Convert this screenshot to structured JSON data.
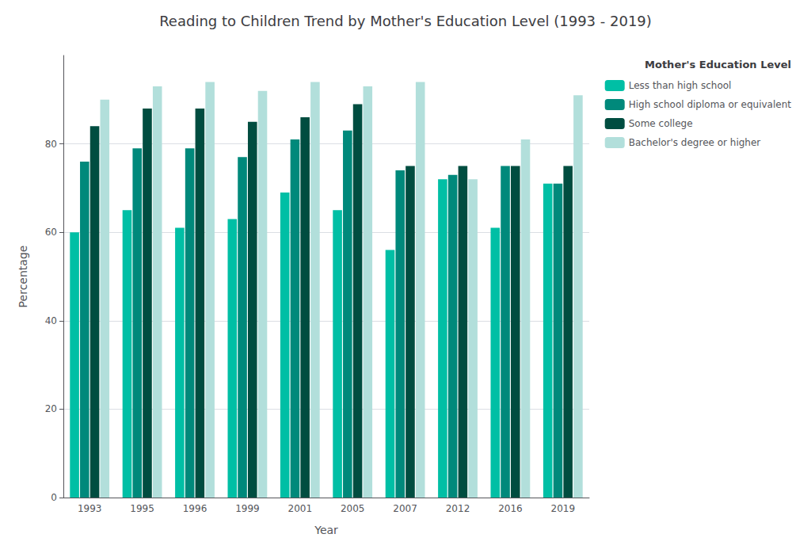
{
  "chart_data": {
    "type": "bar",
    "title": "Reading to Children Trend by Mother's Education Level (1993 - 2019)",
    "xlabel": "Year",
    "ylabel": "Percentage",
    "legend_title": "Mother's Education Level",
    "categories": [
      "1993",
      "1995",
      "1996",
      "1999",
      "2001",
      "2005",
      "2007",
      "2012",
      "2016",
      "2019"
    ],
    "series": [
      {
        "name": "Less than high school",
        "color": "#00BFA5",
        "values": [
          60,
          65,
          61,
          63,
          69,
          65,
          56,
          72,
          61,
          71
        ]
      },
      {
        "name": "High school diploma or equivalent",
        "color": "#00897B",
        "values": [
          76,
          79,
          79,
          77,
          81,
          83,
          74,
          73,
          75,
          71
        ]
      },
      {
        "name": "Some college",
        "color": "#004D40",
        "values": [
          84,
          88,
          88,
          85,
          86,
          89,
          75,
          75,
          75,
          75
        ]
      },
      {
        "name": "Bachelor's degree or higher",
        "color": "#B2DFDB",
        "values": [
          90,
          93,
          94,
          92,
          94,
          93,
          94,
          72,
          81,
          91
        ]
      }
    ],
    "ylim": [
      0,
      100
    ],
    "yticks": [
      0,
      20,
      40,
      60,
      80
    ],
    "grid": true,
    "legend": "upper right"
  }
}
